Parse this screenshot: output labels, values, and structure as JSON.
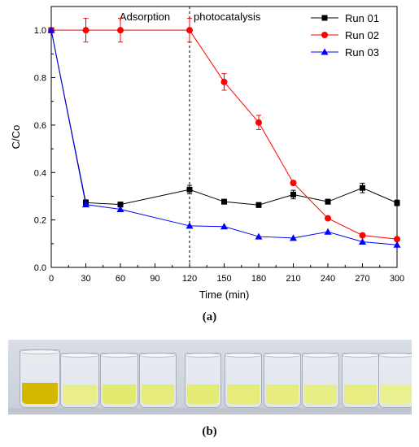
{
  "chart_data": {
    "type": "line",
    "xlabel": "Time (min)",
    "ylabel": "C/Co",
    "xlim": [
      0,
      300
    ],
    "ylim": [
      0,
      1.1
    ],
    "xticks": [
      0,
      30,
      60,
      90,
      120,
      150,
      180,
      210,
      240,
      270,
      300
    ],
    "yticks": [
      0.0,
      0.2,
      0.4,
      0.6,
      0.8,
      1.0
    ],
    "ytick_labels": [
      "0.0",
      "0.2",
      "0.4",
      "0.6",
      "0.8",
      "1.0"
    ],
    "grid": false,
    "legend_position": "top-right",
    "annotations": [
      {
        "text": "Adsorption"
      },
      {
        "text": "photocatalysis"
      }
    ],
    "divider_x": 120,
    "series": [
      {
        "name": "Run 01",
        "color": "#000000",
        "marker": "square",
        "x": [
          0,
          30,
          60,
          120,
          150,
          180,
          210,
          240,
          270,
          300
        ],
        "y": [
          1.0,
          0.273,
          0.265,
          0.328,
          0.277,
          0.263,
          0.307,
          0.277,
          0.335,
          0.272
        ],
        "err": [
          0,
          0.012,
          0.01,
          0.018,
          0.01,
          0.01,
          0.018,
          0.01,
          0.02,
          0.012
        ]
      },
      {
        "name": "Run 02",
        "color": "#ff0000",
        "marker": "circle",
        "x": [
          0,
          30,
          60,
          120,
          150,
          180,
          210,
          240,
          270,
          300
        ],
        "y": [
          1.0,
          1.0,
          1.0,
          1.0,
          0.782,
          0.611,
          0.356,
          0.207,
          0.135,
          0.119
        ],
        "err": [
          0,
          0.05,
          0.05,
          0.05,
          0.035,
          0.03,
          0.01,
          0.005,
          0.005,
          0.005
        ]
      },
      {
        "name": "Run 03",
        "color": "#0000ff",
        "marker": "triangle",
        "x": [
          0,
          30,
          60,
          120,
          150,
          180,
          210,
          240,
          270,
          300
        ],
        "y": [
          1.0,
          0.265,
          0.245,
          0.175,
          0.172,
          0.13,
          0.124,
          0.15,
          0.108,
          0.095
        ],
        "err": [
          0,
          0,
          0,
          0,
          0,
          0,
          0,
          0,
          0,
          0
        ]
      }
    ]
  },
  "captions": {
    "a": "(a)",
    "b": "(b)"
  },
  "photo": {
    "liquid_colors": [
      "#d4b800",
      "#e9ee8a",
      "#e2ea6e",
      "#e5ec78",
      "#e4eb72",
      "#e5ec7a",
      "#e6ed7e",
      "#e8ee86",
      "#e7ed80",
      "#eaf08e"
    ]
  }
}
